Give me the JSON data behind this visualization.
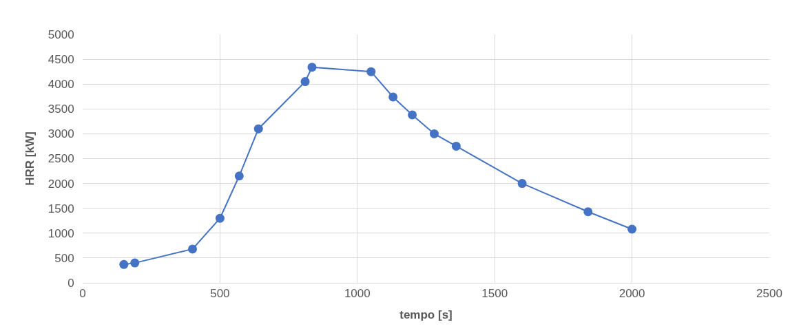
{
  "chart_data": {
    "type": "line",
    "xlabel": "tempo [s]",
    "ylabel": "HRR [kW]",
    "x": [
      150,
      190,
      400,
      500,
      570,
      640,
      810,
      835,
      1050,
      1130,
      1200,
      1280,
      1360,
      1600,
      1840,
      2000
    ],
    "series": [
      {
        "color": "#4472c4",
        "values": [
          370,
          400,
          680,
          1300,
          2150,
          3100,
          4050,
          4340,
          4250,
          3740,
          3380,
          3000,
          2750,
          2000,
          1430,
          1080
        ]
      }
    ],
    "xlim": [
      0,
      2500
    ],
    "xticks": [
      0,
      500,
      1000,
      1500,
      2000,
      2500
    ],
    "ylim": [
      0,
      5000
    ],
    "yticks": [
      0,
      500,
      1000,
      1500,
      2000,
      2500,
      3000,
      3500,
      4000,
      4500,
      5000
    ],
    "grid": true,
    "marker": "circle",
    "line_style": "solid",
    "legend": false
  }
}
